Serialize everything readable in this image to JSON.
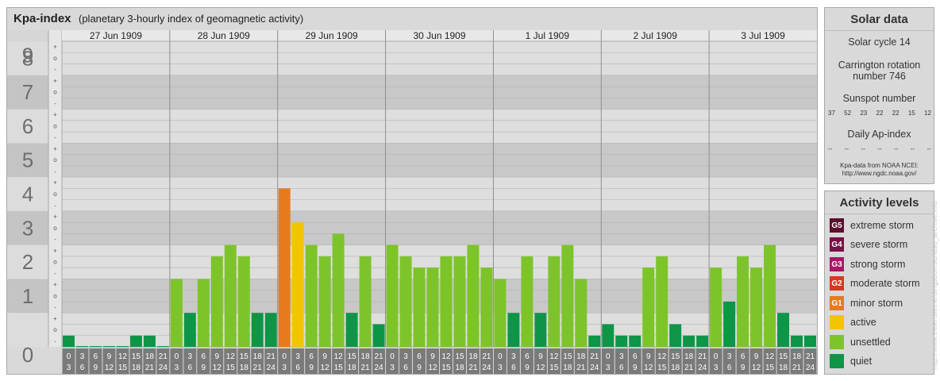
{
  "title": {
    "main": "Kpa-index",
    "sub": "(planetary 3-hourly index of geomagnetic activity)"
  },
  "chart_data": {
    "type": "bar",
    "title": "Kpa-index",
    "subtitle": "(planetary 3-hourly index of geomagnetic activity)",
    "ylim": [
      0,
      9
    ],
    "y_ticks": [
      "0",
      "1",
      "2",
      "3",
      "4",
      "5",
      "6",
      "7",
      "8",
      "9"
    ],
    "y_minor_ticks": [
      "-",
      "o",
      "+"
    ],
    "days": [
      "27 Jun 1909",
      "28 Jun 1909",
      "29 Jun 1909",
      "30 Jun 1909",
      "1 Jul 1909",
      "2 Jul 1909",
      "3 Jul 1909"
    ],
    "interval_start_labels": [
      "0",
      "3",
      "6",
      "9",
      "12",
      "15",
      "18",
      "21"
    ],
    "interval_end_labels": [
      "3",
      "6",
      "9",
      "12",
      "15",
      "18",
      "21",
      "24"
    ],
    "values": [
      [
        0.333,
        0,
        0,
        0,
        0,
        0.333,
        0.333,
        0
      ],
      [
        2,
        1,
        2,
        2.667,
        3,
        2.667,
        1,
        1
      ],
      [
        4.667,
        3.667,
        3,
        2.667,
        3.333,
        1,
        2.667,
        0.667
      ],
      [
        3,
        2.667,
        2.333,
        2.333,
        2.667,
        2.667,
        3,
        2.333
      ],
      [
        2,
        1,
        2.667,
        1,
        2.667,
        3,
        2,
        0.333
      ],
      [
        0.667,
        0.333,
        0.333,
        2.333,
        2.667,
        0.667,
        0.333,
        0.333
      ],
      [
        2.333,
        1.333,
        2.667,
        2.333,
        3,
        1,
        0.333,
        0.333
      ]
    ],
    "levels": [
      [
        0,
        0,
        0,
        0,
        0,
        0,
        0,
        0
      ],
      [
        1,
        0,
        1,
        1,
        1,
        1,
        0,
        0
      ],
      [
        3,
        2,
        1,
        1,
        1,
        0,
        1,
        0
      ],
      [
        1,
        1,
        1,
        1,
        1,
        1,
        1,
        1
      ],
      [
        1,
        0,
        1,
        0,
        1,
        1,
        1,
        0
      ],
      [
        0,
        0,
        0,
        1,
        1,
        0,
        0,
        0
      ],
      [
        1,
        0,
        1,
        1,
        1,
        0,
        0,
        0
      ]
    ],
    "grid": true
  },
  "solar": {
    "header": "Solar data",
    "cycle": "Solar cycle 14",
    "carrington_1": "Carrington rotation",
    "carrington_2": "number 746",
    "sunspot_header": "Sunspot number",
    "sunspots": [
      "37",
      "52",
      "23",
      "22",
      "22",
      "15",
      "12"
    ],
    "ap_header": "Daily Ap-index",
    "ap_values": [
      "--",
      "--",
      "--",
      "--",
      "--",
      "--",
      "--"
    ],
    "source_1": "Kpa-data from NOAA NCEI:",
    "source_2": "http://www.ngdc.noaa.gov/"
  },
  "activity": {
    "header": "Activity levels",
    "items": [
      {
        "code": "G5",
        "label": "extreme storm",
        "color": "#5a0f2c"
      },
      {
        "code": "G4",
        "label": "severe storm",
        "color": "#7a1046"
      },
      {
        "code": "G3",
        "label": "strong storm",
        "color": "#ad1466"
      },
      {
        "code": "G2",
        "label": "moderate storm",
        "color": "#d63820"
      },
      {
        "code": "G1",
        "label": "minor storm",
        "color": "#e87a1e"
      },
      {
        "code": "",
        "label": "active",
        "color": "#f5c400"
      },
      {
        "code": "",
        "label": "unsettled",
        "color": "#7dc42a"
      },
      {
        "code": "",
        "label": "quiet",
        "color": "#0e9548"
      }
    ]
  },
  "level_colors": [
    "#0e9548",
    "#7dc42a",
    "#f5c400",
    "#e87a1e"
  ],
  "watermark": "http://www.freiensteinerdingsbumsundso_archive.info"
}
